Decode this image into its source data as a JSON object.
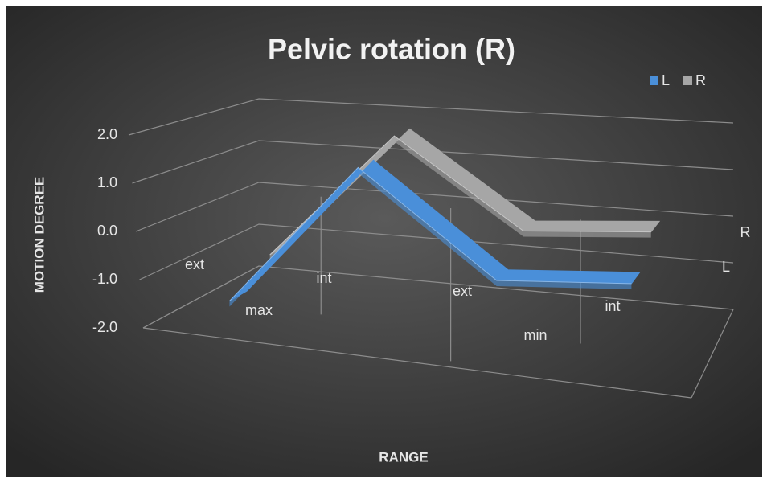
{
  "chart_data": {
    "type": "line3d",
    "title": "Pelvic rotation (R)",
    "y_label": "MOTION DEGREE",
    "x_label": "RANGE",
    "categories": [
      "ext",
      "int",
      "ext",
      "int"
    ],
    "category_groups": [
      "max",
      "min"
    ],
    "series": [
      {
        "name": "L",
        "color": "#4a8fd9",
        "values": [
          -1.5,
          1.5,
          -0.5,
          -0.3
        ]
      },
      {
        "name": "R",
        "color": "#a6a6a6",
        "values": [
          -1.0,
          1.8,
          0.0,
          0.2
        ]
      }
    ],
    "ylim": [
      -2,
      2
    ],
    "yticks": [
      {
        "value": -2,
        "label": "-2.0"
      },
      {
        "value": -1,
        "label": "-1.0"
      },
      {
        "value": 0,
        "label": "0.0"
      },
      {
        "value": 1,
        "label": "1.0"
      },
      {
        "value": 2,
        "label": "2.0"
      }
    ],
    "grid": true,
    "legend": "top-right"
  }
}
